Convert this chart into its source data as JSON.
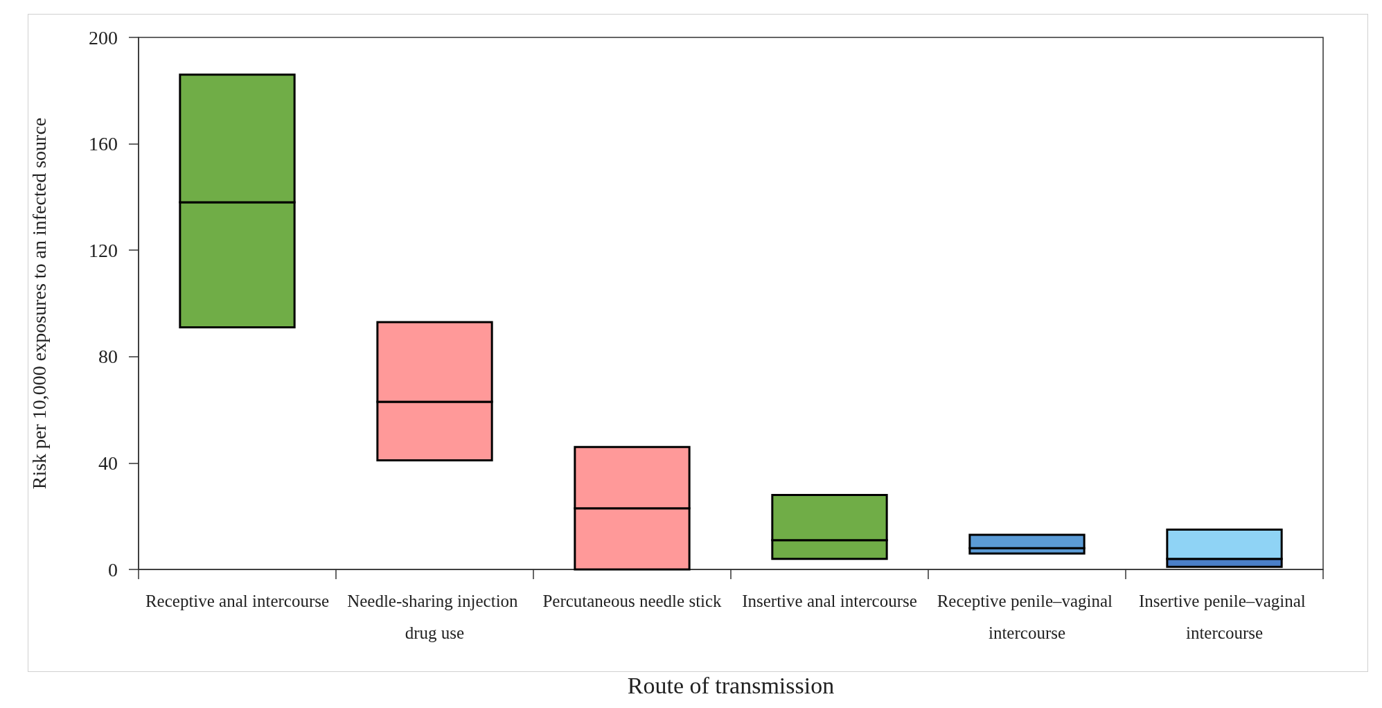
{
  "chart_data": {
    "type": "bar",
    "xlabel": "Route of transmission",
    "ylabel": "Risk per 10,000 exposures to an infected source",
    "categories": [
      "Receptive anal intercourse",
      "Needle-sharing injection drug use",
      "Percutaneous needle stick",
      "Insertive anal intercourse",
      "Receptive penile–vaginal intercourse",
      "Insertive penile–vaginal intercourse"
    ],
    "series": [
      {
        "colors": [
          "#70ad47",
          "#ff9999",
          "#ff9999",
          "#70ad47",
          "#5b9bd5",
          "#4a7fc9"
        ],
        "base": [
          91,
          41,
          0,
          4,
          6,
          1
        ],
        "values": [
          47,
          22,
          23,
          7,
          2,
          3
        ]
      },
      {
        "colors": [
          "#70ad47",
          "#ff9999",
          "#ff9999",
          "#70ad47",
          "#5b9bd5",
          "#8fd3f5"
        ],
        "base": [
          138,
          63,
          23,
          11,
          8,
          4
        ],
        "values": [
          48,
          30,
          23,
          17,
          5,
          11
        ]
      }
    ],
    "ylim": [
      0,
      200
    ],
    "yticks": [
      0,
      40,
      80,
      120,
      160,
      200
    ],
    "grid": false
  }
}
